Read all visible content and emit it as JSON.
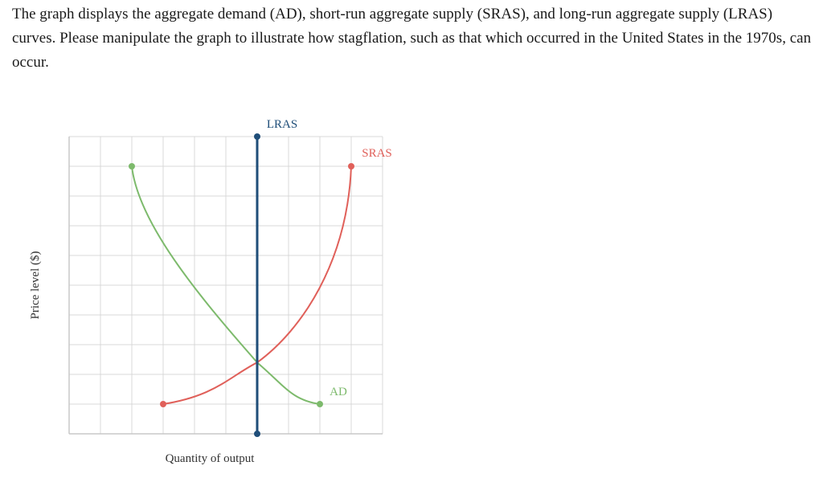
{
  "prompt": "The graph displays the aggregate demand (AD), short-run aggregate supply (SRAS), and long-run aggregate supply (LRAS) curves. Please manipulate the graph to illustrate how stagflation, such as that which occurred in the United States in the 1970s, can occur.",
  "chart_data": {
    "type": "line",
    "xlabel": "Quantity of output",
    "ylabel": "Price level ($)",
    "xlim": [
      0,
      10
    ],
    "ylim": [
      0,
      10
    ],
    "grid": true,
    "equilibrium": [
      6,
      2.4
    ],
    "series": [
      {
        "name": "LRAS",
        "color": "#1f4e79",
        "curve": "vertical",
        "points": [
          [
            6,
            0
          ],
          [
            6,
            10
          ]
        ]
      },
      {
        "name": "SRAS",
        "color": "#e0605a",
        "curve": "convex-up",
        "points": [
          [
            3,
            1
          ],
          [
            6,
            2.4
          ],
          [
            9,
            9
          ]
        ]
      },
      {
        "name": "AD",
        "color": "#7dba6c",
        "curve": "convex-down",
        "points": [
          [
            2,
            9
          ],
          [
            6,
            2.4
          ],
          [
            8,
            1
          ]
        ]
      }
    ]
  }
}
